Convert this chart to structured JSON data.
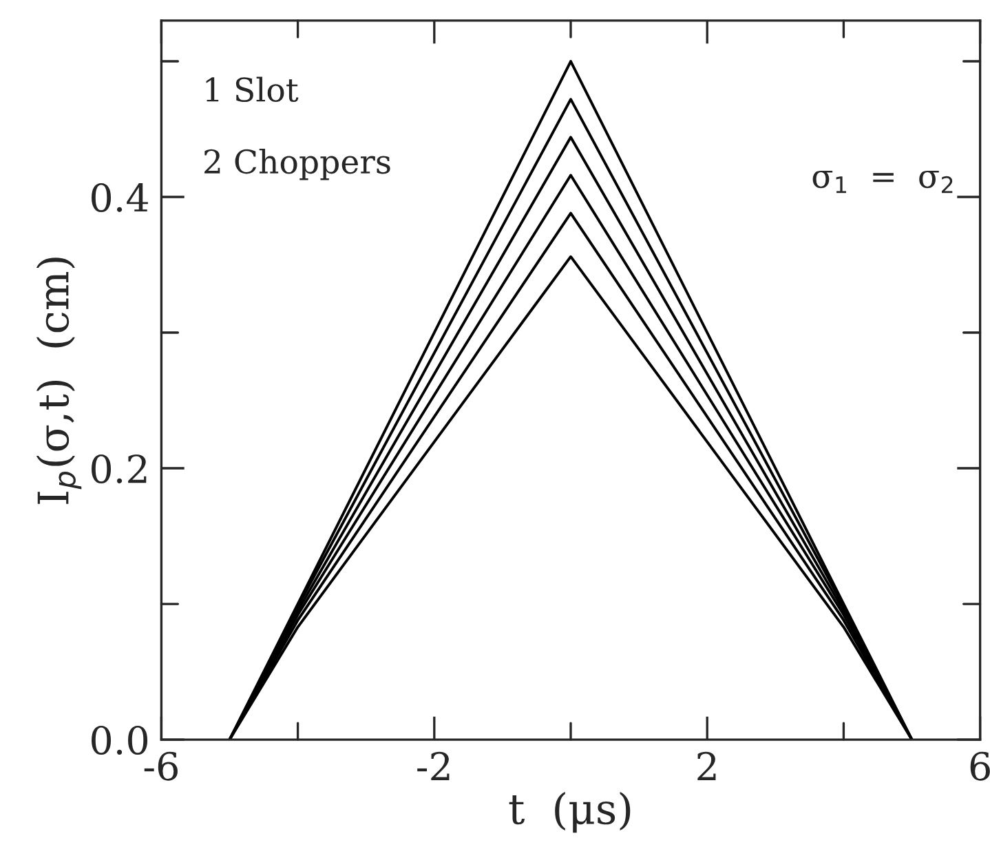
{
  "chart_data": {
    "type": "line",
    "xlabel": "t  (μs)",
    "ylabel": "I$_{p}$(σ,t)  (cm)",
    "annotations": [
      "1 Slot",
      "2 Choppers",
      "σ$_{1}$  =  σ$_{2}$"
    ],
    "x": [
      -5,
      -4,
      0,
      4,
      5
    ],
    "series": [
      {
        "color": "#000000",
        "values": [
          0,
          0.1,
          0.5,
          0.1,
          0
        ]
      },
      {
        "color": "#000000",
        "values": [
          0,
          0.098,
          0.472,
          0.098,
          0
        ]
      },
      {
        "color": "#000000",
        "values": [
          0,
          0.095,
          0.444,
          0.095,
          0
        ]
      },
      {
        "color": "#000000",
        "values": [
          0,
          0.092,
          0.416,
          0.092,
          0
        ]
      },
      {
        "color": "#000000",
        "values": [
          0,
          0.088,
          0.388,
          0.088,
          0
        ]
      },
      {
        "color": "#000000",
        "values": [
          0,
          0.083,
          0.356,
          0.083,
          0
        ]
      }
    ],
    "xlim": [
      -6,
      6
    ],
    "ylim": [
      0,
      0.53
    ],
    "xticks": [
      -6,
      {
        "value": -4,
        "label": null
      },
      -2,
      {
        "value": 0,
        "label": null
      },
      2,
      {
        "value": 4,
        "label": null
      },
      6
    ],
    "yticks": [
      "0.0",
      {
        "value": 0.1,
        "label": null
      },
      {
        "value": 0.2,
        "label": "0.2"
      },
      {
        "value": 0.3,
        "label": null
      },
      {
        "value": 0.4,
        "label": "0.4"
      },
      {
        "value": 0.5,
        "label": null
      }
    ],
    "grid": false,
    "marker": "none",
    "line_style": "solid"
  }
}
